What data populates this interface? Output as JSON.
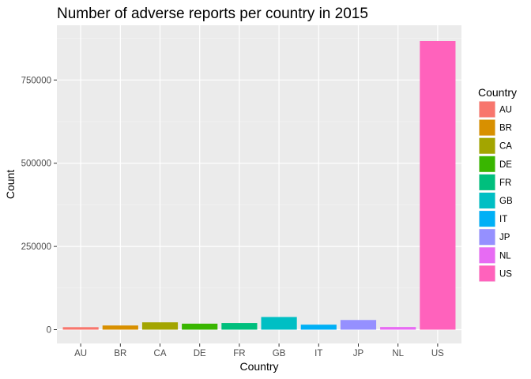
{
  "chart_data": {
    "type": "bar",
    "title": "Number of adverse reports per country in 2015",
    "xlabel": "Country",
    "ylabel": "Count",
    "categories": [
      "AU",
      "BR",
      "CA",
      "DE",
      "FR",
      "GB",
      "IT",
      "JP",
      "NL",
      "US"
    ],
    "values": [
      7500,
      12500,
      22000,
      18000,
      20000,
      38000,
      15000,
      29000,
      8000,
      867000
    ],
    "colors": [
      "#F8766D",
      "#D89000",
      "#A3A500",
      "#39B600",
      "#00BF7D",
      "#00BFC4",
      "#00B0F6",
      "#9590FF",
      "#E76BF3",
      "#FF62BC"
    ],
    "ylim": [
      0,
      900000
    ],
    "yticks": [
      0,
      250000,
      500000,
      750000
    ],
    "ytick_labels": [
      "0",
      "250000",
      "500000",
      "750000"
    ],
    "grid": true,
    "legend": {
      "title": "Country",
      "position": "right",
      "entries": [
        "AU",
        "BR",
        "CA",
        "DE",
        "FR",
        "GB",
        "IT",
        "JP",
        "NL",
        "US"
      ]
    }
  }
}
